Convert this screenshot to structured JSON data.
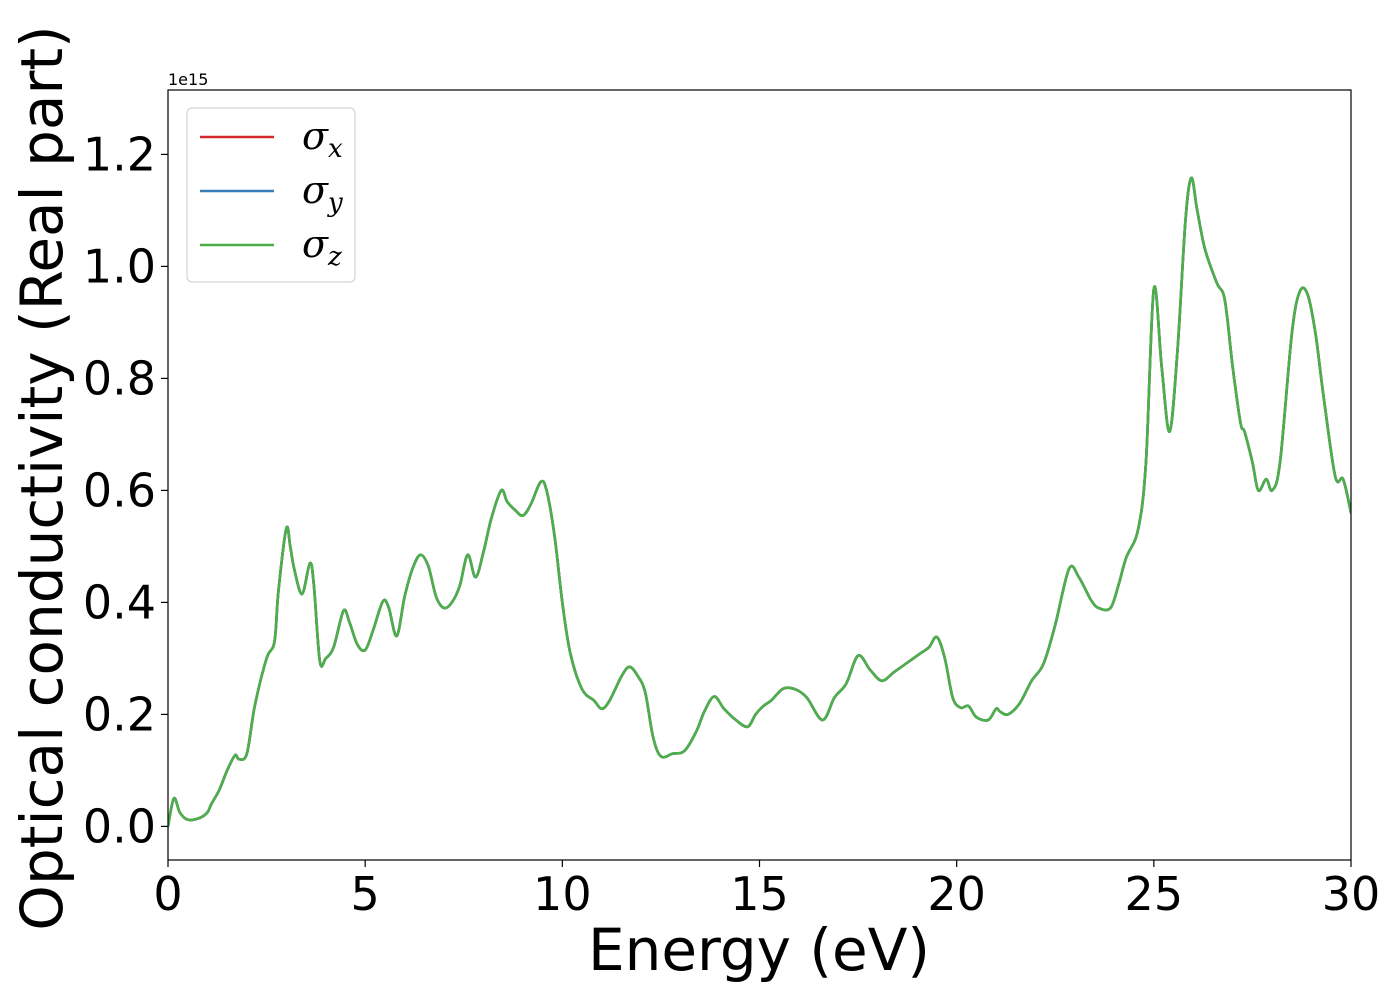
{
  "chart_data": {
    "type": "line",
    "xlabel": "Energy (eV)",
    "ylabel": "Optical conductivity (Real part)",
    "y_offset_text": "1e15",
    "xlim": [
      0,
      30
    ],
    "ylim": [
      -0.06,
      1.315
    ],
    "xticks": [
      0,
      5,
      10,
      15,
      20,
      25,
      30
    ],
    "xtick_labels": [
      "0",
      "5",
      "10",
      "15",
      "20",
      "25",
      "30"
    ],
    "yticks": [
      0.0,
      0.2,
      0.4,
      0.6,
      0.8,
      1.0,
      1.2
    ],
    "ytick_labels": [
      "0.0",
      "0.2",
      "0.4",
      "0.6",
      "0.8",
      "1.0",
      "1.2"
    ],
    "grid": false,
    "legend_position": "upper-left",
    "legend": [
      {
        "symbol": "σ",
        "subscript": "x",
        "color": "#d62728"
      },
      {
        "symbol": "σ",
        "subscript": "y",
        "color": "#377eb8"
      },
      {
        "symbol": "σ",
        "subscript": "z",
        "color": "#4daf4a"
      }
    ],
    "x": [
      0,
      0.15,
      0.3,
      0.5,
      0.8,
      1.0,
      1.1,
      1.3,
      1.5,
      1.7,
      1.8,
      2.0,
      2.2,
      2.5,
      2.7,
      2.8,
      3.0,
      3.1,
      3.2,
      3.4,
      3.6,
      3.7,
      3.85,
      4.0,
      4.2,
      4.45,
      4.6,
      4.8,
      5.0,
      5.2,
      5.45,
      5.6,
      5.8,
      6.0,
      6.2,
      6.4,
      6.6,
      6.8,
      7.0,
      7.2,
      7.4,
      7.6,
      7.8,
      8.0,
      8.2,
      8.45,
      8.6,
      8.8,
      9.0,
      9.2,
      9.45,
      9.6,
      9.8,
      10.0,
      10.2,
      10.5,
      10.8,
      11.0,
      11.2,
      11.5,
      11.7,
      11.9,
      12.1,
      12.3,
      12.5,
      12.8,
      13.1,
      13.4,
      13.6,
      13.85,
      14.1,
      14.4,
      14.7,
      14.9,
      15.1,
      15.3,
      15.6,
      15.9,
      16.2,
      16.6,
      16.9,
      17.2,
      17.5,
      17.8,
      18.1,
      18.4,
      18.7,
      18.9,
      19.1,
      19.3,
      19.5,
      19.7,
      19.9,
      20.1,
      20.3,
      20.5,
      20.8,
      21.0,
      21.1,
      21.3,
      21.6,
      21.9,
      22.2,
      22.5,
      22.85,
      23.1,
      23.4,
      23.6,
      23.9,
      24.1,
      24.3,
      24.6,
      24.8,
      25.0,
      25.2,
      25.4,
      25.6,
      25.8,
      25.95,
      26.1,
      26.3,
      26.6,
      26.8,
      27.0,
      27.2,
      27.3,
      27.5,
      27.65,
      27.85,
      28.0,
      28.2,
      28.5,
      28.7,
      28.9,
      29.1,
      29.3,
      29.6,
      29.8,
      30.0
    ],
    "series": [
      {
        "name": "σx",
        "color": "#d62728",
        "values": [
          0.0,
          0.05,
          0.025,
          0.012,
          0.015,
          0.025,
          0.04,
          0.065,
          0.1,
          0.127,
          0.12,
          0.13,
          0.215,
          0.3,
          0.33,
          0.42,
          0.532,
          0.5,
          0.46,
          0.415,
          0.47,
          0.43,
          0.295,
          0.3,
          0.32,
          0.385,
          0.365,
          0.325,
          0.315,
          0.35,
          0.402,
          0.39,
          0.34,
          0.41,
          0.46,
          0.485,
          0.465,
          0.41,
          0.39,
          0.4,
          0.43,
          0.485,
          0.445,
          0.49,
          0.55,
          0.6,
          0.58,
          0.565,
          0.555,
          0.575,
          0.615,
          0.6,
          0.52,
          0.4,
          0.31,
          0.245,
          0.225,
          0.21,
          0.225,
          0.268,
          0.285,
          0.27,
          0.24,
          0.16,
          0.125,
          0.13,
          0.135,
          0.17,
          0.205,
          0.232,
          0.21,
          0.19,
          0.178,
          0.2,
          0.215,
          0.225,
          0.246,
          0.245,
          0.23,
          0.19,
          0.23,
          0.255,
          0.305,
          0.28,
          0.26,
          0.275,
          0.29,
          0.3,
          0.31,
          0.32,
          0.338,
          0.3,
          0.23,
          0.212,
          0.215,
          0.195,
          0.19,
          0.21,
          0.205,
          0.2,
          0.22,
          0.26,
          0.29,
          0.36,
          0.46,
          0.445,
          0.405,
          0.39,
          0.39,
          0.43,
          0.48,
          0.53,
          0.65,
          0.96,
          0.82,
          0.705,
          0.85,
          1.08,
          1.158,
          1.1,
          1.03,
          0.97,
          0.94,
          0.82,
          0.72,
          0.705,
          0.65,
          0.6,
          0.62,
          0.6,
          0.65,
          0.88,
          0.955,
          0.95,
          0.88,
          0.77,
          0.625,
          0.62,
          0.56
        ]
      },
      {
        "name": "σy",
        "color": "#377eb8",
        "values": [
          0.0,
          0.05,
          0.025,
          0.012,
          0.015,
          0.025,
          0.04,
          0.065,
          0.1,
          0.127,
          0.12,
          0.13,
          0.215,
          0.3,
          0.33,
          0.42,
          0.532,
          0.5,
          0.46,
          0.415,
          0.47,
          0.43,
          0.295,
          0.3,
          0.32,
          0.385,
          0.365,
          0.325,
          0.315,
          0.35,
          0.402,
          0.39,
          0.34,
          0.41,
          0.46,
          0.485,
          0.465,
          0.41,
          0.39,
          0.4,
          0.43,
          0.485,
          0.445,
          0.49,
          0.55,
          0.6,
          0.58,
          0.565,
          0.555,
          0.575,
          0.615,
          0.6,
          0.52,
          0.4,
          0.31,
          0.245,
          0.225,
          0.21,
          0.225,
          0.268,
          0.285,
          0.27,
          0.24,
          0.16,
          0.125,
          0.13,
          0.135,
          0.17,
          0.205,
          0.232,
          0.21,
          0.19,
          0.178,
          0.2,
          0.215,
          0.225,
          0.246,
          0.245,
          0.23,
          0.19,
          0.23,
          0.255,
          0.305,
          0.28,
          0.26,
          0.275,
          0.29,
          0.3,
          0.31,
          0.32,
          0.338,
          0.3,
          0.23,
          0.212,
          0.215,
          0.195,
          0.19,
          0.21,
          0.205,
          0.2,
          0.22,
          0.26,
          0.29,
          0.36,
          0.46,
          0.445,
          0.405,
          0.39,
          0.39,
          0.43,
          0.48,
          0.53,
          0.65,
          0.96,
          0.82,
          0.705,
          0.85,
          1.08,
          1.158,
          1.1,
          1.03,
          0.97,
          0.94,
          0.82,
          0.72,
          0.705,
          0.65,
          0.6,
          0.62,
          0.6,
          0.65,
          0.88,
          0.955,
          0.95,
          0.88,
          0.77,
          0.625,
          0.62,
          0.56
        ]
      },
      {
        "name": "σz",
        "color": "#4daf4a",
        "values": [
          0.0,
          0.05,
          0.025,
          0.012,
          0.015,
          0.025,
          0.04,
          0.065,
          0.1,
          0.127,
          0.12,
          0.13,
          0.215,
          0.3,
          0.33,
          0.42,
          0.532,
          0.5,
          0.46,
          0.415,
          0.47,
          0.43,
          0.295,
          0.3,
          0.32,
          0.385,
          0.365,
          0.325,
          0.315,
          0.35,
          0.402,
          0.39,
          0.34,
          0.41,
          0.46,
          0.485,
          0.465,
          0.41,
          0.39,
          0.4,
          0.43,
          0.485,
          0.445,
          0.49,
          0.55,
          0.6,
          0.58,
          0.565,
          0.555,
          0.575,
          0.615,
          0.6,
          0.52,
          0.4,
          0.31,
          0.245,
          0.225,
          0.21,
          0.225,
          0.268,
          0.285,
          0.27,
          0.24,
          0.16,
          0.125,
          0.13,
          0.135,
          0.17,
          0.205,
          0.232,
          0.21,
          0.19,
          0.178,
          0.2,
          0.215,
          0.225,
          0.246,
          0.245,
          0.23,
          0.19,
          0.23,
          0.255,
          0.305,
          0.28,
          0.26,
          0.275,
          0.29,
          0.3,
          0.31,
          0.32,
          0.338,
          0.3,
          0.23,
          0.212,
          0.215,
          0.195,
          0.19,
          0.21,
          0.205,
          0.2,
          0.22,
          0.26,
          0.29,
          0.36,
          0.46,
          0.445,
          0.405,
          0.39,
          0.39,
          0.43,
          0.48,
          0.53,
          0.65,
          0.96,
          0.82,
          0.705,
          0.85,
          1.08,
          1.158,
          1.1,
          1.03,
          0.97,
          0.94,
          0.82,
          0.72,
          0.705,
          0.65,
          0.6,
          0.62,
          0.6,
          0.65,
          0.88,
          0.955,
          0.95,
          0.88,
          0.77,
          0.625,
          0.62,
          0.56
        ]
      }
    ]
  }
}
